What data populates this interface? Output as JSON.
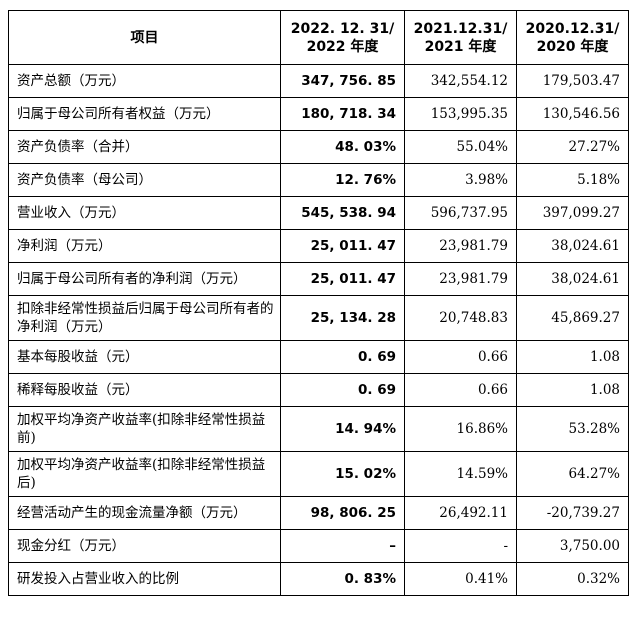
{
  "header": {
    "item": "项目",
    "col1_l1": "2022. 12. 31/",
    "col1_l2": "2022 年度",
    "col2_l1": "2021.12.31/",
    "col2_l2": "2021 年度",
    "col3_l1": "2020.12.31/",
    "col3_l2": "2020 年度"
  },
  "rows": [
    {
      "label": "资产总额（万元）",
      "v2022": "347, 756. 85",
      "v2021": "342,554.12",
      "v2020": "179,503.47"
    },
    {
      "label": "归属于母公司所有者权益（万元）",
      "v2022": "180, 718. 34",
      "v2021": "153,995.35",
      "v2020": "130,546.56"
    },
    {
      "label": "资产负债率（合并）",
      "v2022": "48. 03%",
      "v2021": "55.04%",
      "v2020": "27.27%"
    },
    {
      "label": "资产负债率（母公司）",
      "v2022": "12. 76%",
      "v2021": "3.98%",
      "v2020": "5.18%"
    },
    {
      "label": "营业收入（万元）",
      "v2022": "545, 538. 94",
      "v2021": "596,737.95",
      "v2020": "397,099.27"
    },
    {
      "label": "净利润（万元）",
      "v2022": "25, 011. 47",
      "v2021": "23,981.79",
      "v2020": "38,024.61"
    },
    {
      "label": "归属于母公司所有者的净利润（万元）",
      "v2022": "25, 011. 47",
      "v2021": "23,981.79",
      "v2020": "38,024.61"
    },
    {
      "label": "扣除非经常性损益后归属于母公司所有者的净利润（万元）",
      "v2022": "25, 134. 28",
      "v2021": "20,748.83",
      "v2020": "45,869.27"
    },
    {
      "label": "基本每股收益（元）",
      "v2022": "0. 69",
      "v2021": "0.66",
      "v2020": "1.08"
    },
    {
      "label": "稀释每股收益（元）",
      "v2022": "0. 69",
      "v2021": "0.66",
      "v2020": "1.08"
    },
    {
      "label": "加权平均净资产收益率(扣除非经常性损益前)",
      "v2022": "14. 94%",
      "v2021": "16.86%",
      "v2020": "53.28%"
    },
    {
      "label": "加权平均净资产收益率(扣除非经常性损益后)",
      "v2022": "15. 02%",
      "v2021": "14.59%",
      "v2020": "64.27%"
    },
    {
      "label": "经营活动产生的现金流量净额（万元）",
      "v2022": "98, 806. 25",
      "v2021": "26,492.11",
      "v2020": "-20,739.27"
    },
    {
      "label": "现金分红（万元）",
      "v2022": "–",
      "v2021": "-",
      "v2020": "3,750.00"
    },
    {
      "label": "研发投入占营业收入的比例",
      "v2022": "0. 83%",
      "v2021": "0.41%",
      "v2020": "0.32%"
    }
  ]
}
